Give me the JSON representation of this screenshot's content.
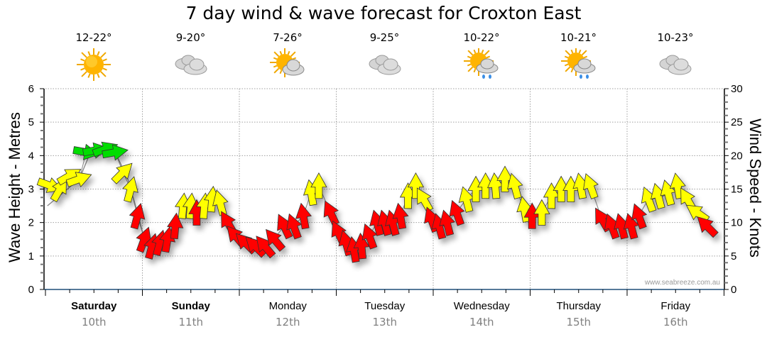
{
  "chart_data": {
    "type": "scatter",
    "title": "7 day wind & wave forecast for Croxton East",
    "ylabel_left": "Wave Height - Metres",
    "ylabel_right": "Wind Speed - Knots",
    "ylim_left": [
      0,
      6
    ],
    "ylim_right": [
      0,
      30
    ],
    "yticks_left": [
      "0",
      "1",
      "2",
      "3",
      "4",
      "5",
      "6"
    ],
    "yticks_right": [
      "0",
      "5",
      "10",
      "15",
      "20",
      "25",
      "30"
    ],
    "grid": true,
    "watermark": "www.seabreeze.com.au",
    "days": [
      {
        "day": "Saturday",
        "date": "10th",
        "temp": "12-22°",
        "icon": "sunny-icon",
        "bold": true
      },
      {
        "day": "Sunday",
        "date": "11th",
        "temp": "9-20°",
        "icon": "cloudy-icon",
        "bold": true
      },
      {
        "day": "Monday",
        "date": "12th",
        "temp": "7-26°",
        "icon": "partly-cloudy-icon",
        "bold": false
      },
      {
        "day": "Tuesday",
        "date": "13th",
        "temp": "9-25°",
        "icon": "cloudy-icon",
        "bold": false
      },
      {
        "day": "Wednesday",
        "date": "14th",
        "temp": "10-22°",
        "icon": "showers-icon",
        "bold": false
      },
      {
        "day": "Thursday",
        "date": "15th",
        "temp": "10-21°",
        "icon": "showers-icon",
        "bold": false
      },
      {
        "day": "Friday",
        "date": "16th",
        "temp": "10-23°",
        "icon": "cloudy-icon",
        "bold": false
      }
    ],
    "colors": {
      "light": "#ff0000",
      "moderate": "#ffff00",
      "fresh": "#00dd00",
      "line": "#888888",
      "axis": "#1f4e79"
    },
    "wind_series": [
      {
        "t": 0.05,
        "knots": 15.5,
        "dir": 110,
        "cat": "moderate"
      },
      {
        "t": 0.15,
        "knots": 15.0,
        "dir": 30,
        "cat": "moderate"
      },
      {
        "t": 0.25,
        "knots": 17.0,
        "dir": 60,
        "cat": "moderate"
      },
      {
        "t": 0.35,
        "knots": 16.5,
        "dir": 70,
        "cat": "moderate"
      },
      {
        "t": 0.42,
        "knots": 20.5,
        "dir": 100,
        "cat": "fresh"
      },
      {
        "t": 0.52,
        "knots": 20.8,
        "dir": 80,
        "cat": "fresh"
      },
      {
        "t": 0.62,
        "knots": 21.0,
        "dir": 70,
        "cat": "fresh"
      },
      {
        "t": 0.72,
        "knots": 20.5,
        "dir": 80,
        "cat": "fresh"
      },
      {
        "t": 0.8,
        "knots": 17.5,
        "dir": 45,
        "cat": "moderate"
      },
      {
        "t": 0.88,
        "knots": 15.0,
        "dir": 15,
        "cat": "moderate"
      },
      {
        "t": 0.95,
        "knots": 11.0,
        "dir": 15,
        "cat": "light"
      },
      {
        "t": 1.02,
        "knots": 7.5,
        "dir": 20,
        "cat": "light"
      },
      {
        "t": 1.1,
        "knots": 6.5,
        "dir": 15,
        "cat": "light"
      },
      {
        "t": 1.18,
        "knots": 7.0,
        "dir": 15,
        "cat": "light"
      },
      {
        "t": 1.26,
        "knots": 7.5,
        "dir": 10,
        "cat": "light"
      },
      {
        "t": 1.34,
        "knots": 9.5,
        "dir": 5,
        "cat": "light"
      },
      {
        "t": 1.42,
        "knots": 12.5,
        "dir": 5,
        "cat": "moderate"
      },
      {
        "t": 1.5,
        "knots": 12.5,
        "dir": 5,
        "cat": "moderate"
      },
      {
        "t": 1.56,
        "knots": 11.5,
        "dir": 0,
        "cat": "light"
      },
      {
        "t": 1.64,
        "knots": 12.5,
        "dir": 5,
        "cat": "moderate"
      },
      {
        "t": 1.72,
        "knots": 13.5,
        "dir": 5,
        "cat": "moderate"
      },
      {
        "t": 1.8,
        "knots": 13.0,
        "dir": -15,
        "cat": "moderate"
      },
      {
        "t": 1.88,
        "knots": 10.0,
        "dir": -30,
        "cat": "light"
      },
      {
        "t": 1.96,
        "knots": 8.0,
        "dir": -40,
        "cat": "light"
      },
      {
        "t": 2.06,
        "knots": 7.0,
        "dir": -45,
        "cat": "light"
      },
      {
        "t": 2.16,
        "knots": 6.5,
        "dir": -45,
        "cat": "light"
      },
      {
        "t": 2.26,
        "knots": 6.5,
        "dir": -40,
        "cat": "light"
      },
      {
        "t": 2.36,
        "knots": 7.5,
        "dir": -40,
        "cat": "light"
      },
      {
        "t": 2.46,
        "knots": 9.5,
        "dir": -25,
        "cat": "light"
      },
      {
        "t": 2.56,
        "knots": 9.5,
        "dir": -20,
        "cat": "light"
      },
      {
        "t": 2.66,
        "knots": 11.0,
        "dir": -10,
        "cat": "light"
      },
      {
        "t": 2.74,
        "knots": 14.5,
        "dir": -10,
        "cat": "moderate"
      },
      {
        "t": 2.82,
        "knots": 15.5,
        "dir": 0,
        "cat": "moderate"
      },
      {
        "t": 2.94,
        "knots": 11.5,
        "dir": -25,
        "cat": "light"
      },
      {
        "t": 3.02,
        "knots": 8.5,
        "dir": -25,
        "cat": "light"
      },
      {
        "t": 3.1,
        "knots": 7.0,
        "dir": -15,
        "cat": "light"
      },
      {
        "t": 3.18,
        "knots": 6.0,
        "dir": -10,
        "cat": "light"
      },
      {
        "t": 3.26,
        "knots": 6.5,
        "dir": -5,
        "cat": "light"
      },
      {
        "t": 3.34,
        "knots": 8.0,
        "dir": -20,
        "cat": "light"
      },
      {
        "t": 3.42,
        "knots": 10.0,
        "dir": -15,
        "cat": "light"
      },
      {
        "t": 3.5,
        "knots": 10.0,
        "dir": -15,
        "cat": "light"
      },
      {
        "t": 3.58,
        "knots": 10.0,
        "dir": -15,
        "cat": "light"
      },
      {
        "t": 3.66,
        "knots": 11.0,
        "dir": -10,
        "cat": "light"
      },
      {
        "t": 3.74,
        "knots": 14.0,
        "dir": 0,
        "cat": "moderate"
      },
      {
        "t": 3.82,
        "knots": 15.5,
        "dir": 0,
        "cat": "moderate"
      },
      {
        "t": 3.9,
        "knots": 13.5,
        "dir": -30,
        "cat": "moderate"
      },
      {
        "t": 3.98,
        "knots": 10.5,
        "dir": -20,
        "cat": "light"
      },
      {
        "t": 4.06,
        "knots": 9.5,
        "dir": -15,
        "cat": "light"
      },
      {
        "t": 4.14,
        "knots": 10.0,
        "dir": -15,
        "cat": "light"
      },
      {
        "t": 4.24,
        "knots": 11.5,
        "dir": -20,
        "cat": "light"
      },
      {
        "t": 4.34,
        "knots": 13.5,
        "dir": -15,
        "cat": "moderate"
      },
      {
        "t": 4.44,
        "knots": 15.0,
        "dir": 0,
        "cat": "moderate"
      },
      {
        "t": 4.54,
        "knots": 15.5,
        "dir": 0,
        "cat": "moderate"
      },
      {
        "t": 4.64,
        "knots": 15.5,
        "dir": -5,
        "cat": "moderate"
      },
      {
        "t": 4.74,
        "knots": 16.5,
        "dir": 0,
        "cat": "moderate"
      },
      {
        "t": 4.84,
        "knots": 15.5,
        "dir": -15,
        "cat": "moderate"
      },
      {
        "t": 4.94,
        "knots": 12.0,
        "dir": -10,
        "cat": "moderate"
      },
      {
        "t": 5.02,
        "knots": 11.0,
        "dir": 0,
        "cat": "light"
      },
      {
        "t": 5.12,
        "knots": 11.5,
        "dir": 0,
        "cat": "moderate"
      },
      {
        "t": 5.22,
        "knots": 14.0,
        "dir": 0,
        "cat": "moderate"
      },
      {
        "t": 5.32,
        "knots": 15.0,
        "dir": 0,
        "cat": "moderate"
      },
      {
        "t": 5.42,
        "knots": 15.0,
        "dir": 0,
        "cat": "moderate"
      },
      {
        "t": 5.52,
        "knots": 15.5,
        "dir": -10,
        "cat": "moderate"
      },
      {
        "t": 5.62,
        "knots": 15.5,
        "dir": -20,
        "cat": "moderate"
      },
      {
        "t": 5.74,
        "knots": 10.5,
        "dir": -30,
        "cat": "light"
      },
      {
        "t": 5.84,
        "knots": 9.5,
        "dir": -20,
        "cat": "light"
      },
      {
        "t": 5.94,
        "knots": 9.5,
        "dir": -15,
        "cat": "light"
      },
      {
        "t": 6.04,
        "knots": 9.5,
        "dir": -15,
        "cat": "light"
      },
      {
        "t": 6.12,
        "knots": 11.0,
        "dir": -20,
        "cat": "light"
      },
      {
        "t": 6.22,
        "knots": 13.5,
        "dir": -20,
        "cat": "moderate"
      },
      {
        "t": 6.32,
        "knots": 14.0,
        "dir": -15,
        "cat": "moderate"
      },
      {
        "t": 6.42,
        "knots": 14.5,
        "dir": -15,
        "cat": "moderate"
      },
      {
        "t": 6.52,
        "knots": 15.5,
        "dir": -10,
        "cat": "moderate"
      },
      {
        "t": 6.62,
        "knots": 13.5,
        "dir": -30,
        "cat": "moderate"
      },
      {
        "t": 6.72,
        "knots": 11.5,
        "dir": -55,
        "cat": "moderate"
      },
      {
        "t": 6.82,
        "knots": 9.5,
        "dir": -45,
        "cat": "light"
      }
    ],
    "wave_line": [
      {
        "t": 0.02,
        "m": 2.5
      },
      {
        "t": 0.35,
        "m": 3.3
      },
      {
        "t": 0.45,
        "m": 4.0
      },
      {
        "t": 0.72,
        "m": 4.1
      },
      {
        "t": 0.85,
        "m": 3.3
      },
      {
        "t": 0.95,
        "m": 2.3
      },
      {
        "t": 1.02,
        "m": 1.5
      }
    ]
  }
}
